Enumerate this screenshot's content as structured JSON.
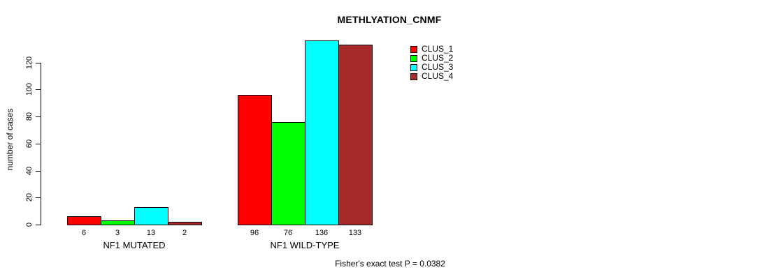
{
  "chart_data": {
    "type": "bar",
    "title": "METHLYATION_CNMF",
    "ylabel": "number of cases",
    "xlabel": "",
    "categories": [
      "NF1 MUTATED",
      "NF1 WILD-TYPE"
    ],
    "series": [
      {
        "name": "CLUS_1",
        "color": "#FF0000",
        "values": [
          6,
          96
        ]
      },
      {
        "name": "CLUS_2",
        "color": "#00FF00",
        "values": [
          3,
          76
        ]
      },
      {
        "name": "CLUS_3",
        "color": "#00FFFF",
        "values": [
          13,
          136
        ]
      },
      {
        "name": "CLUS_4",
        "color": "#A52A2A",
        "values": [
          2,
          133
        ]
      }
    ],
    "bar_value_labels": [
      [
        "6",
        "3",
        "13",
        "2"
      ],
      [
        "96",
        "76",
        "136",
        "133"
      ]
    ],
    "yticks": [
      0,
      20,
      40,
      60,
      80,
      100,
      120
    ],
    "ylim": [
      0,
      136
    ],
    "grid": false,
    "legend_position": "top-right",
    "annotation": "Fisher's exact test P = 0.0382"
  }
}
